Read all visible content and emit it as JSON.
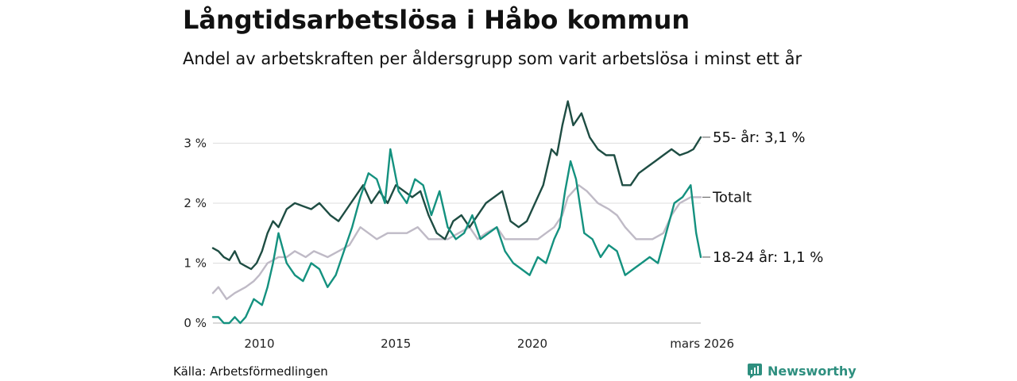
{
  "chart_data": {
    "type": "line",
    "title": "Långtidsarbetslösa i Håbo kommun",
    "subtitle": "Andel av arbetskraften per åldersgrupp som varit arbetslösa i minst ett år",
    "xlabel": "",
    "ylabel": "",
    "unit": "%",
    "x_range": [
      2008.3,
      2026.17
    ],
    "ylim": [
      0,
      3.8
    ],
    "y_ticks": [
      {
        "value": 0,
        "label": "0 %"
      },
      {
        "value": 1,
        "label": "1 %"
      },
      {
        "value": 2,
        "label": "2 %"
      },
      {
        "value": 3,
        "label": "3 %"
      }
    ],
    "x_ticks": [
      {
        "value": 2010,
        "label": "2010"
      },
      {
        "value": 2015,
        "label": "2015"
      },
      {
        "value": 2020,
        "label": "2020"
      },
      {
        "value": 2026.17,
        "label": "mars 2026"
      }
    ],
    "series": [
      {
        "name": "Totalt",
        "end_label": "Totalt",
        "color": "#bfbac6",
        "x": [
          2008.3,
          2008.5,
          2008.8,
          2009.1,
          2009.5,
          2009.8,
          2010.0,
          2010.3,
          2010.7,
          2011.0,
          2011.3,
          2011.7,
          2012.0,
          2012.5,
          2012.9,
          2013.3,
          2013.7,
          2014.0,
          2014.3,
          2014.7,
          2015.0,
          2015.4,
          2015.8,
          2016.2,
          2016.5,
          2016.9,
          2017.3,
          2017.7,
          2018.0,
          2018.3,
          2018.7,
          2019.0,
          2019.4,
          2019.8,
          2020.2,
          2020.5,
          2020.8,
          2021.1,
          2021.3,
          2021.7,
          2022.0,
          2022.4,
          2022.8,
          2023.1,
          2023.4,
          2023.8,
          2024.1,
          2024.4,
          2024.8,
          2025.1,
          2025.4,
          2025.8,
          2026.17
        ],
        "values": [
          0.5,
          0.6,
          0.4,
          0.5,
          0.6,
          0.7,
          0.8,
          1.0,
          1.1,
          1.1,
          1.2,
          1.1,
          1.2,
          1.1,
          1.2,
          1.3,
          1.6,
          1.5,
          1.4,
          1.5,
          1.5,
          1.5,
          1.6,
          1.4,
          1.4,
          1.4,
          1.5,
          1.6,
          1.4,
          1.5,
          1.6,
          1.4,
          1.4,
          1.4,
          1.4,
          1.5,
          1.6,
          1.8,
          2.1,
          2.3,
          2.2,
          2.0,
          1.9,
          1.8,
          1.6,
          1.4,
          1.4,
          1.4,
          1.5,
          1.8,
          2.0,
          2.1,
          2.1
        ]
      },
      {
        "name": "55- år",
        "end_label": "55- år: 3,1 %",
        "color": "#1e4d43",
        "x": [
          2008.3,
          2008.5,
          2008.7,
          2008.9,
          2009.1,
          2009.3,
          2009.5,
          2009.7,
          2009.9,
          2010.1,
          2010.3,
          2010.5,
          2010.7,
          2011.0,
          2011.3,
          2011.6,
          2011.9,
          2012.2,
          2012.6,
          2012.9,
          2013.2,
          2013.5,
          2013.8,
          2014.1,
          2014.4,
          2014.7,
          2015.0,
          2015.3,
          2015.6,
          2015.9,
          2016.2,
          2016.5,
          2016.8,
          2017.1,
          2017.4,
          2017.7,
          2018.0,
          2018.3,
          2018.6,
          2018.9,
          2019.2,
          2019.5,
          2019.8,
          2020.1,
          2020.4,
          2020.7,
          2020.9,
          2021.1,
          2021.3,
          2021.5,
          2021.8,
          2022.1,
          2022.4,
          2022.7,
          2023.0,
          2023.3,
          2023.6,
          2023.9,
          2024.2,
          2024.5,
          2024.8,
          2025.1,
          2025.4,
          2025.7,
          2025.9,
          2026.17
        ],
        "values": [
          1.25,
          1.2,
          1.1,
          1.05,
          1.2,
          1.0,
          0.95,
          0.9,
          1.0,
          1.2,
          1.5,
          1.7,
          1.6,
          1.9,
          2.0,
          1.95,
          1.9,
          2.0,
          1.8,
          1.7,
          1.9,
          2.1,
          2.3,
          2.0,
          2.2,
          2.0,
          2.3,
          2.2,
          2.1,
          2.2,
          1.8,
          1.5,
          1.4,
          1.7,
          1.8,
          1.6,
          1.8,
          2.0,
          2.1,
          2.2,
          1.7,
          1.6,
          1.7,
          2.0,
          2.3,
          2.9,
          2.8,
          3.3,
          3.7,
          3.3,
          3.5,
          3.1,
          2.9,
          2.8,
          2.8,
          2.3,
          2.3,
          2.5,
          2.6,
          2.7,
          2.8,
          2.9,
          2.8,
          2.85,
          2.9,
          3.1
        ]
      },
      {
        "name": "18-24 år",
        "end_label": "18-24 år: 1,1 %",
        "color": "#14917f",
        "x": [
          2008.3,
          2008.5,
          2008.7,
          2008.9,
          2009.1,
          2009.3,
          2009.5,
          2009.8,
          2010.1,
          2010.3,
          2010.5,
          2010.7,
          2011.0,
          2011.3,
          2011.6,
          2011.9,
          2012.2,
          2012.5,
          2012.8,
          2013.1,
          2013.4,
          2013.7,
          2014.0,
          2014.3,
          2014.6,
          2014.8,
          2015.1,
          2015.4,
          2015.7,
          2016.0,
          2016.3,
          2016.6,
          2016.9,
          2017.2,
          2017.5,
          2017.8,
          2018.1,
          2018.4,
          2018.7,
          2019.0,
          2019.3,
          2019.6,
          2019.9,
          2020.2,
          2020.5,
          2020.8,
          2021.0,
          2021.2,
          2021.4,
          2021.6,
          2021.9,
          2022.2,
          2022.5,
          2022.8,
          2023.1,
          2023.4,
          2023.7,
          2024.0,
          2024.3,
          2024.6,
          2024.9,
          2025.2,
          2025.5,
          2025.8,
          2026.0,
          2026.17
        ],
        "values": [
          0.1,
          0.1,
          0.0,
          0.0,
          0.1,
          0.0,
          0.1,
          0.4,
          0.3,
          0.6,
          1.0,
          1.5,
          1.0,
          0.8,
          0.7,
          1.0,
          0.9,
          0.6,
          0.8,
          1.2,
          1.6,
          2.1,
          2.5,
          2.4,
          2.0,
          2.9,
          2.2,
          2.0,
          2.4,
          2.3,
          1.8,
          2.2,
          1.6,
          1.4,
          1.5,
          1.8,
          1.4,
          1.5,
          1.6,
          1.2,
          1.0,
          0.9,
          0.8,
          1.1,
          1.0,
          1.4,
          1.6,
          2.2,
          2.7,
          2.4,
          1.5,
          1.4,
          1.1,
          1.3,
          1.2,
          0.8,
          0.9,
          1.0,
          1.1,
          1.0,
          1.5,
          2.0,
          2.1,
          2.3,
          1.5,
          1.1
        ]
      }
    ]
  },
  "footer": {
    "source": "Källa: Arbetsförmedlingen",
    "brand": "Newsworthy"
  },
  "colors": {
    "brand": "#2e8f7f",
    "grid": "#dddddd"
  }
}
